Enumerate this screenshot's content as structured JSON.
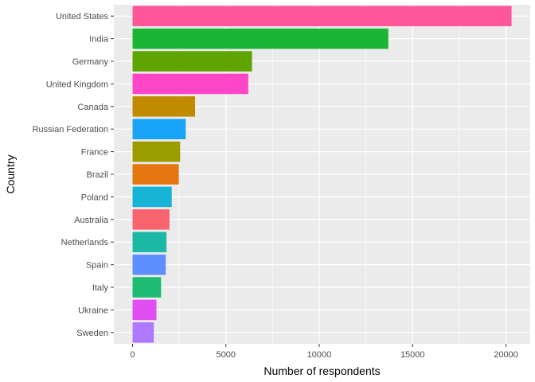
{
  "chart_data": {
    "type": "bar",
    "orientation": "horizontal",
    "xlabel": "Number of respondents",
    "ylabel": "Country",
    "xlim": [
      -1000,
      21300
    ],
    "x_ticks": [
      0,
      5000,
      10000,
      15000,
      20000
    ],
    "grid": true,
    "legend": "none",
    "panel_background": "#ebebeb",
    "grid_color": "#ffffff",
    "categories": [
      "United States",
      "India",
      "Germany",
      "United Kingdom",
      "Canada",
      "Russian Federation",
      "France",
      "Brazil",
      "Poland",
      "Australia",
      "Netherlands",
      "Spain",
      "Italy",
      "Ukraine",
      "Sweden"
    ],
    "values": [
      20300,
      13700,
      6400,
      6200,
      3350,
      2850,
      2550,
      2480,
      2100,
      1980,
      1820,
      1780,
      1530,
      1280,
      1140
    ],
    "colors": [
      "#FF5599",
      "#1AB534",
      "#5FA400",
      "#FF45C8",
      "#C08B00",
      "#19A3F7",
      "#9B9C00",
      "#E57710",
      "#18B4D7",
      "#F8646E",
      "#1BB8A5",
      "#5F8EFF",
      "#1DBB71",
      "#E34EF2",
      "#AE78FF"
    ]
  }
}
